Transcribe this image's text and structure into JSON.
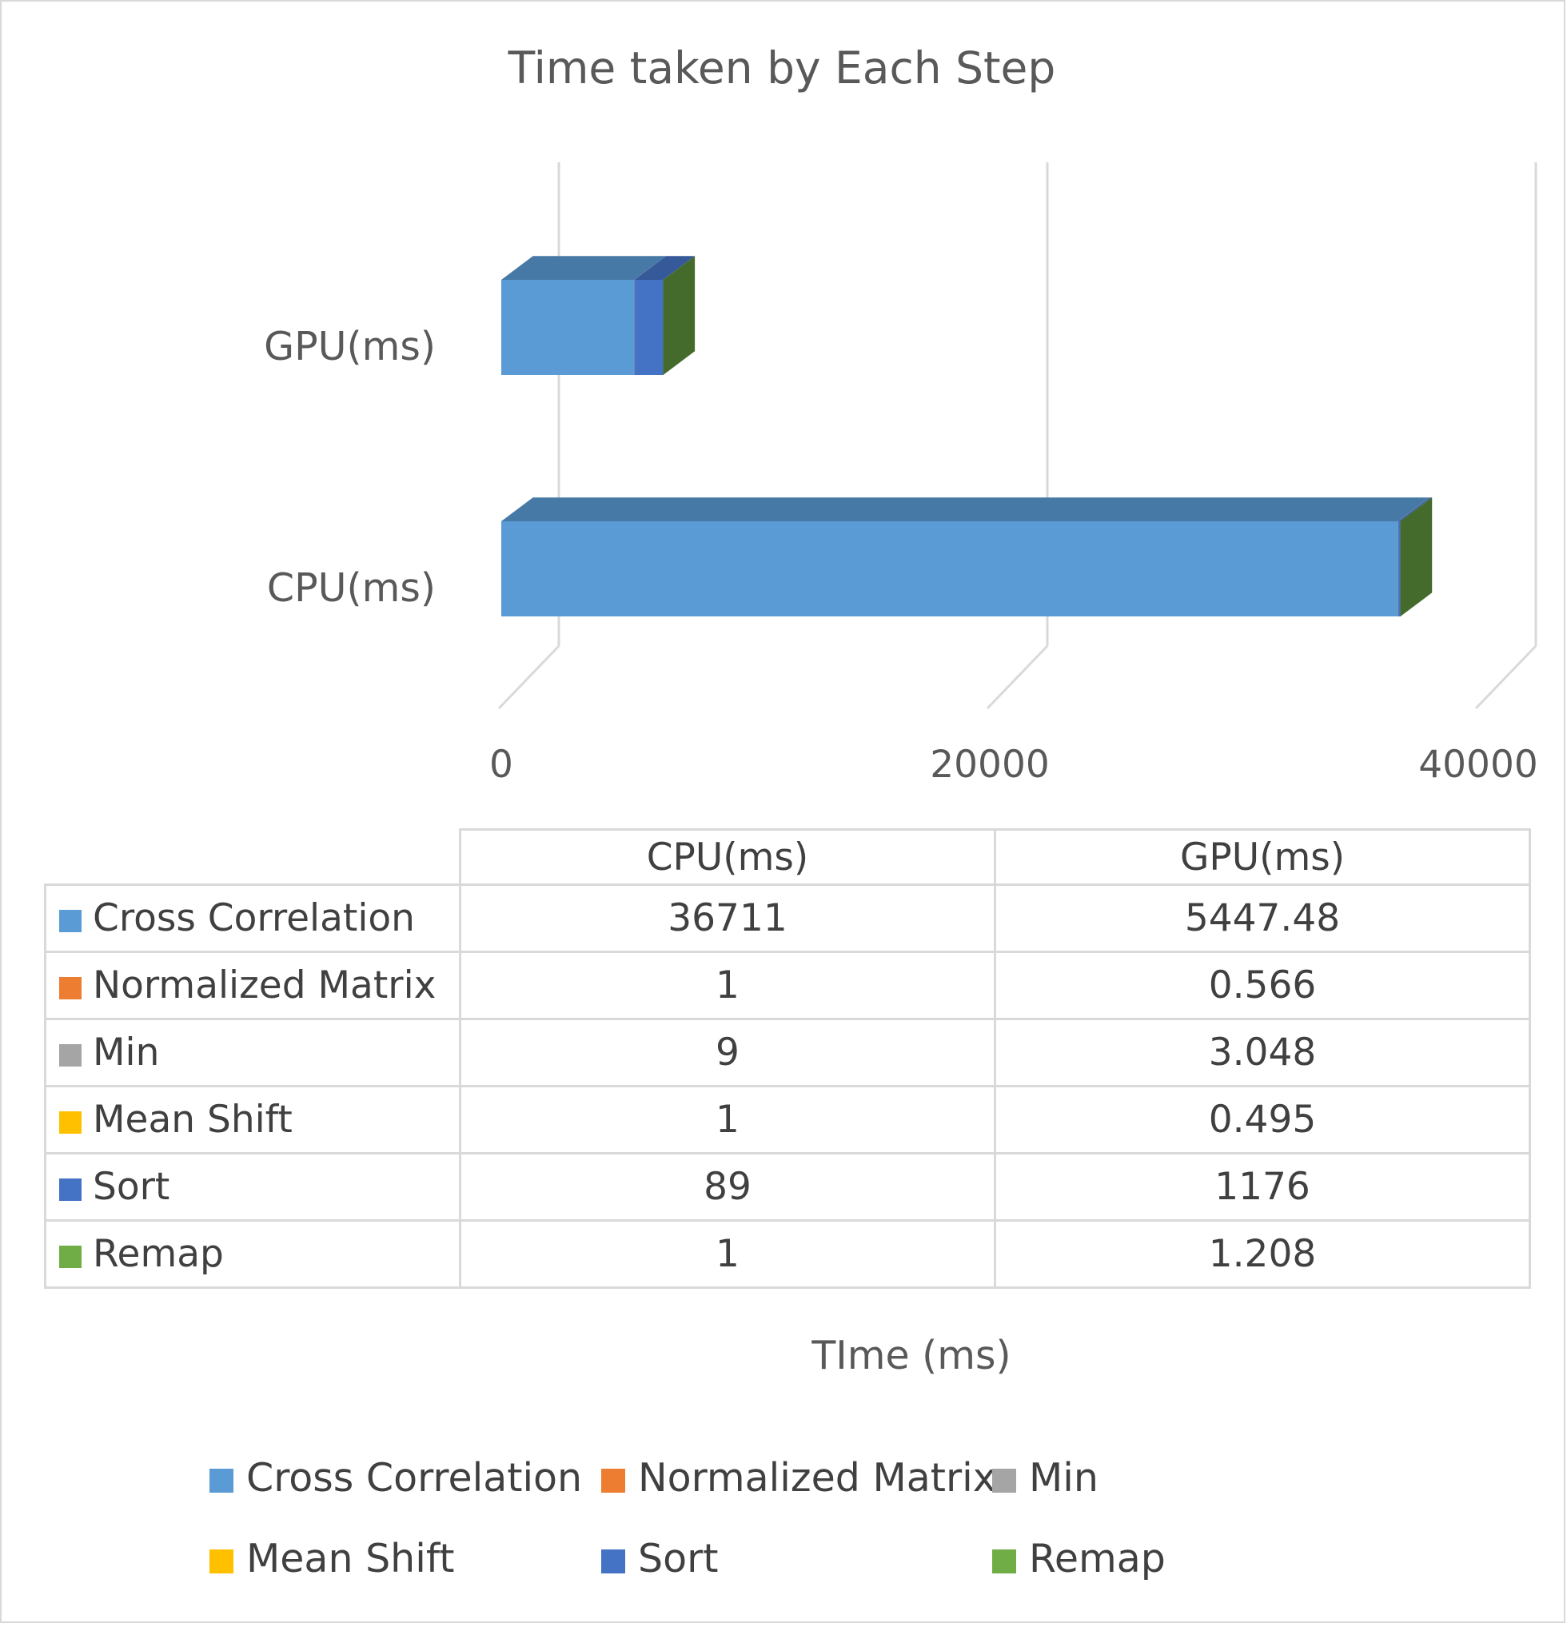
{
  "chart_data": {
    "type": "bar",
    "orientation": "horizontal",
    "stacked": true,
    "style": "3d",
    "title": "Time taken by Each Step",
    "xlabel": "TIme (ms)",
    "categories": [
      "CPU(ms)",
      "GPU(ms)"
    ],
    "series": [
      {
        "name": "Cross Correlation",
        "color": "#5b9bd5",
        "values": [
          36711,
          5447.48
        ]
      },
      {
        "name": "Normalized Matrix",
        "color": "#ed7d31",
        "values": [
          1,
          0.566
        ]
      },
      {
        "name": "Min",
        "color": "#a5a5a5",
        "values": [
          9,
          3.048
        ]
      },
      {
        "name": "Mean Shift",
        "color": "#ffc000",
        "values": [
          1,
          0.495
        ]
      },
      {
        "name": "Sort",
        "color": "#4472c4",
        "values": [
          89,
          1176
        ]
      },
      {
        "name": "Remap",
        "color": "#70ad47",
        "values": [
          1,
          1.208
        ]
      }
    ],
    "table_values": [
      [
        "36711",
        "5447.48"
      ],
      [
        "1",
        "0.566"
      ],
      [
        "9",
        "3.048"
      ],
      [
        "1",
        "0.495"
      ],
      [
        "89",
        "1176"
      ],
      [
        "1",
        "1.208"
      ]
    ],
    "x_ticks": [
      "0",
      "20000",
      "40000"
    ],
    "xlim": [
      0,
      40000
    ],
    "grid": true,
    "data_table": true,
    "legend_position": "bottom"
  }
}
